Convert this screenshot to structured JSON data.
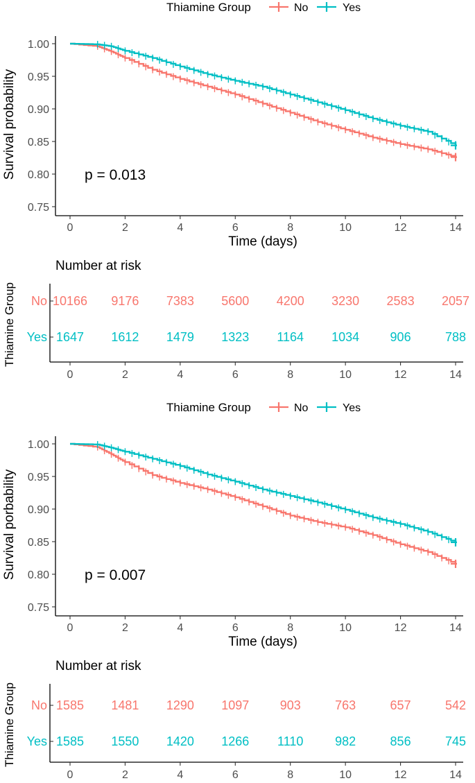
{
  "colors": {
    "no": "#F8766D",
    "yes": "#00BFC4"
  },
  "chart_data": [
    {
      "type": "line",
      "legend": {
        "title": "Thiamine Group",
        "entries": [
          "No",
          "Yes"
        ],
        "placement": "top"
      },
      "xlabel": "Time (days)",
      "ylabel": "Survival probability",
      "xlim": [
        0,
        14
      ],
      "ylim": [
        0.75,
        1.0
      ],
      "xticks": [
        "0",
        "2",
        "4",
        "6",
        "8",
        "10",
        "12",
        "14"
      ],
      "yticks": [
        "0.75",
        "0.80",
        "0.85",
        "0.90",
        "0.95",
        "1.00"
      ],
      "annotation": "p = 0.013",
      "grid": false,
      "x": [
        0,
        1,
        1.5,
        2,
        3,
        4,
        5,
        6,
        7,
        8,
        9,
        10,
        11,
        12,
        13,
        14
      ],
      "series": [
        {
          "name": "No",
          "values": [
            1.0,
            0.996,
            0.988,
            0.978,
            0.96,
            0.946,
            0.934,
            0.922,
            0.908,
            0.894,
            0.88,
            0.868,
            0.856,
            0.846,
            0.838,
            0.826
          ]
        },
        {
          "name": "Yes",
          "values": [
            1.0,
            0.999,
            0.996,
            0.989,
            0.978,
            0.965,
            0.953,
            0.943,
            0.934,
            0.922,
            0.91,
            0.898,
            0.885,
            0.874,
            0.865,
            0.844
          ]
        }
      ],
      "risk_table": {
        "title": "Number at risk",
        "ylabel": "Thiamine Group",
        "x": [
          "0",
          "2",
          "4",
          "6",
          "8",
          "10",
          "12",
          "14"
        ],
        "rows": [
          {
            "name": "No",
            "values": [
              "10166",
              "9176",
              "7383",
              "5600",
              "4200",
              "3230",
              "2583",
              "2057"
            ]
          },
          {
            "name": "Yes",
            "values": [
              "1647",
              "1612",
              "1479",
              "1323",
              "1164",
              "1034",
              "906",
              "788"
            ]
          }
        ]
      }
    },
    {
      "type": "line",
      "legend": {
        "title": "Thiamine Group",
        "entries": [
          "No",
          "Yes"
        ],
        "placement": "top"
      },
      "xlabel": "Time (days)",
      "ylabel": "Survival porbability",
      "xlim": [
        0,
        14
      ],
      "ylim": [
        0.75,
        1.0
      ],
      "xticks": [
        "0",
        "2",
        "4",
        "6",
        "8",
        "10",
        "12",
        "14"
      ],
      "yticks": [
        "0.75",
        "0.80",
        "0.85",
        "0.90",
        "0.95",
        "1.00"
      ],
      "annotation": "p = 0.007",
      "grid": false,
      "x": [
        0,
        1,
        1.5,
        2,
        3,
        4,
        5,
        6,
        7,
        8,
        9,
        10,
        11,
        12,
        13,
        14
      ],
      "series": [
        {
          "name": "No",
          "values": [
            1.0,
            0.995,
            0.984,
            0.972,
            0.952,
            0.94,
            0.93,
            0.918,
            0.904,
            0.89,
            0.88,
            0.872,
            0.86,
            0.846,
            0.834,
            0.816
          ]
        },
        {
          "name": "Yes",
          "values": [
            1.0,
            0.999,
            0.994,
            0.988,
            0.977,
            0.966,
            0.953,
            0.942,
            0.93,
            0.92,
            0.91,
            0.899,
            0.887,
            0.877,
            0.865,
            0.849
          ]
        }
      ],
      "risk_table": {
        "title": "Number at risk",
        "ylabel": "Thiamine Group",
        "x": [
          "0",
          "2",
          "4",
          "6",
          "8",
          "10",
          "12",
          "14"
        ],
        "rows": [
          {
            "name": "No",
            "values": [
              "1585",
              "1481",
              "1290",
              "1097",
              "903",
              "763",
              "657",
              "542"
            ]
          },
          {
            "name": "Yes",
            "values": [
              "1585",
              "1550",
              "1420",
              "1266",
              "1110",
              "982",
              "856",
              "745"
            ]
          }
        ]
      }
    }
  ]
}
